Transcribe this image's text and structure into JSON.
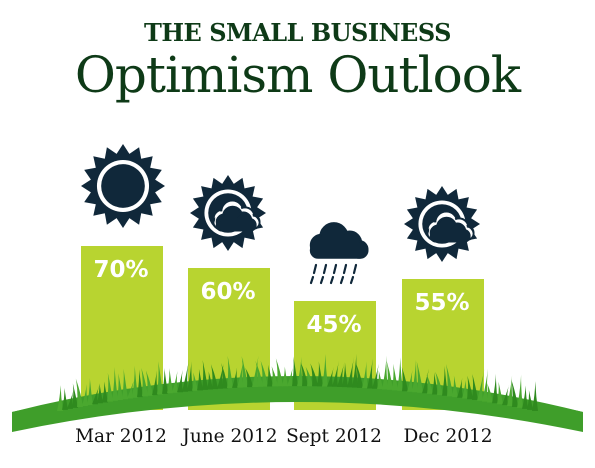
{
  "header": {
    "kicker": "THE SMALL BUSINESS",
    "title": "Optimism Outlook"
  },
  "colors": {
    "bar": "#b8d430",
    "bar_shade": "#9dba1f",
    "hill": "#3f9e2a",
    "grass": "#2f8a1e",
    "icon": "#10283a",
    "title": "#0e3a17"
  },
  "chart_data": {
    "type": "bar",
    "title": "Optimism Outlook",
    "categories": [
      "Mar 2012",
      "June 2012",
      "Sept 2012",
      "Dec 2012"
    ],
    "values": [
      70,
      60,
      45,
      55
    ],
    "data_labels": [
      "70%",
      "60%",
      "45%",
      "55%"
    ],
    "weather_icons": [
      "sun-icon",
      "sun-cloud-icon",
      "rain-cloud-icon",
      "sun-cloud-icon"
    ],
    "ylim": [
      0,
      100
    ],
    "grid": false,
    "legend": "none"
  }
}
